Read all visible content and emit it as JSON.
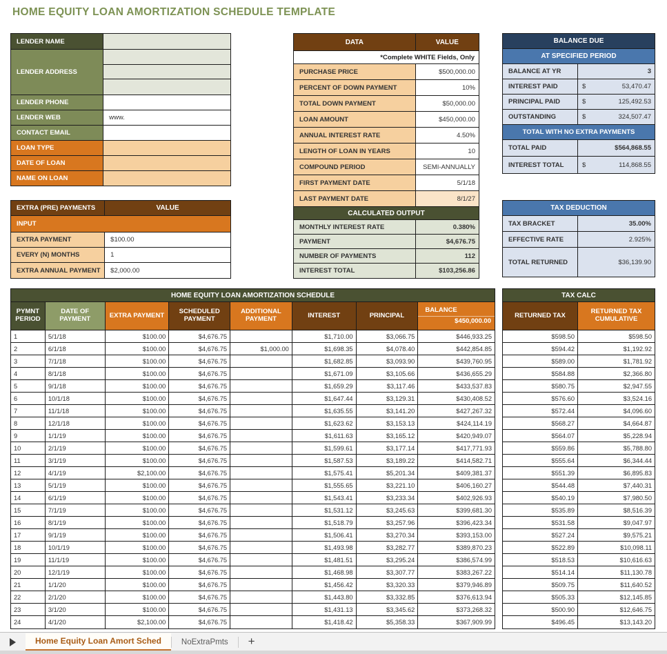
{
  "page_title": "HOME EQUITY LOAN AMORTIZATION SCHEDULE TEMPLATE",
  "colors": {
    "title_green": "#7d9254",
    "dark_olive": "#4a5132",
    "sage": "#7e8b58",
    "orange": "#d8771f",
    "dark_brown": "#714012",
    "peach": "#f6d09f",
    "peach_light": "#fbe4c8",
    "pale_green": "#e3e6da",
    "navy": "#28405e",
    "medium_blue": "#4a77ad",
    "pale_blue": "#dbe2ee",
    "tab_accent": "#c4722e"
  },
  "lender": {
    "name_label": "LENDER NAME",
    "name_value": "",
    "address_label": "LENDER ADDRESS",
    "address_lines": [
      "",
      "",
      ""
    ],
    "phone_label": "LENDER PHONE",
    "phone_value": "",
    "web_label": "LENDER WEB",
    "web_value": "www.",
    "email_label": "CONTACT EMAIL",
    "email_value": "",
    "loan_type_label": "LOAN TYPE",
    "loan_type_value": "",
    "date_of_loan_label": "DATE OF LOAN",
    "date_of_loan_value": "",
    "name_on_loan_label": "NAME ON LOAN",
    "name_on_loan_value": ""
  },
  "extra_payments": {
    "header": "EXTRA (PRE) PAYMENTS",
    "value_header": "VALUE",
    "input_header": "INPUT",
    "rows": [
      {
        "label": "EXTRA PAYMENT",
        "value": "$100.00"
      },
      {
        "label": "EVERY (N) MONTHS",
        "value": "1"
      },
      {
        "label": "EXTRA ANNUAL PAYMENT",
        "value": "$2,000.00"
      }
    ]
  },
  "data_table": {
    "header": "DATA",
    "value_header": "VALUE",
    "note": "*Complete WHITE Fields, Only",
    "rows": [
      {
        "label": "PURCHASE PRICE",
        "value": "$500,000.00",
        "value_bg": "white"
      },
      {
        "label": "PERCENT OF DOWN PAYMENT",
        "value": "10%",
        "value_bg": "white"
      },
      {
        "label": "TOTAL DOWN PAYMENT",
        "value": "$50,000.00",
        "value_bg": "white"
      },
      {
        "label": "LOAN AMOUNT",
        "value": "$450,000.00",
        "value_bg": "white"
      },
      {
        "label": "ANNUAL INTEREST RATE",
        "value": "4.50%",
        "value_bg": "white"
      },
      {
        "label": "LENGTH OF LOAN IN YEARS",
        "value": "10",
        "value_bg": "white"
      },
      {
        "label": "COMPOUND PERIOD",
        "value": "SEMI-ANNUALLY",
        "value_bg": "white"
      },
      {
        "label": "FIRST PAYMENT DATE",
        "value": "5/1/18",
        "value_bg": "white"
      },
      {
        "label": "LAST PAYMENT DATE",
        "value": "8/1/27",
        "value_bg": "peach"
      }
    ],
    "calculated_header": "CALCULATED OUTPUT",
    "calculated_rows": [
      {
        "label": "MONTHLY INTEREST RATE",
        "value": "0.380%"
      },
      {
        "label": "PAYMENT",
        "value": "$4,676.75"
      },
      {
        "label": "NUMBER OF PAYMENTS",
        "value": "112"
      },
      {
        "label": "INTEREST TOTAL",
        "value": "$103,256.86"
      }
    ]
  },
  "balance_due": {
    "header": "BALANCE DUE",
    "sub_header_1": "AT SPECIFIED PERIOD",
    "rows_1": [
      {
        "label": "BALANCE AT YR",
        "currency": "",
        "value": "3"
      },
      {
        "label": "INTEREST PAID",
        "currency": "$",
        "value": "53,470.47"
      },
      {
        "label": "PRINCIPAL PAID",
        "currency": "$",
        "value": "125,492.53"
      },
      {
        "label": "OUTSTANDING",
        "currency": "$",
        "value": "324,507.47"
      }
    ],
    "sub_header_2": "TOTAL WITH NO EXTRA PAYMENTS",
    "rows_2": [
      {
        "label": "TOTAL PAID",
        "currency": "",
        "value": "$564,868.55"
      },
      {
        "label": "INTEREST TOTAL",
        "currency": "$",
        "value": "114,868.55"
      }
    ]
  },
  "tax_deduction": {
    "header": "TAX DEDUCTION",
    "rows": [
      {
        "label": "TAX BRACKET",
        "value": "35.00%"
      },
      {
        "label": "EFFECTIVE RATE",
        "value": "2.925%"
      },
      {
        "label": "TOTAL RETURNED",
        "value": "$36,139.90"
      }
    ]
  },
  "schedule": {
    "title": "HOME EQUITY LOAN AMORTIZATION SCHEDULE",
    "col_pymnt_period": "PYMNT PERIOD",
    "col_date_of_payment": "DATE OF PAYMENT",
    "col_extra_payment": "EXTRA PAYMENT",
    "col_scheduled_payment": "SCHEDULED PAYMENT",
    "col_additional_payment": "ADDITIONAL PAYMENT",
    "col_interest": "INTEREST",
    "col_principal": "PRINCIPAL",
    "col_balance_line1": "BALANCE",
    "col_balance_line2": "$450,000.00",
    "rows": [
      {
        "period": "1",
        "date": "5/1/18",
        "extra": "$100.00",
        "scheduled": "$4,676.75",
        "additional": "",
        "interest": "$1,710.00",
        "principal": "$3,066.75",
        "balance": "$446,933.25",
        "returned_tax": "$598.50",
        "returned_tax_cumulative": "$598.50"
      },
      {
        "period": "2",
        "date": "6/1/18",
        "extra": "$100.00",
        "scheduled": "$4,676.75",
        "additional": "$1,000.00",
        "interest": "$1,698.35",
        "principal": "$4,078.40",
        "balance": "$442,854.85",
        "returned_tax": "$594.42",
        "returned_tax_cumulative": "$1,192.92"
      },
      {
        "period": "3",
        "date": "7/1/18",
        "extra": "$100.00",
        "scheduled": "$4,676.75",
        "additional": "",
        "interest": "$1,682.85",
        "principal": "$3,093.90",
        "balance": "$439,760.95",
        "returned_tax": "$589.00",
        "returned_tax_cumulative": "$1,781.92"
      },
      {
        "period": "4",
        "date": "8/1/18",
        "extra": "$100.00",
        "scheduled": "$4,676.75",
        "additional": "",
        "interest": "$1,671.09",
        "principal": "$3,105.66",
        "balance": "$436,655.29",
        "returned_tax": "$584.88",
        "returned_tax_cumulative": "$2,366.80"
      },
      {
        "period": "5",
        "date": "9/1/18",
        "extra": "$100.00",
        "scheduled": "$4,676.75",
        "additional": "",
        "interest": "$1,659.29",
        "principal": "$3,117.46",
        "balance": "$433,537.83",
        "returned_tax": "$580.75",
        "returned_tax_cumulative": "$2,947.55"
      },
      {
        "period": "6",
        "date": "10/1/18",
        "extra": "$100.00",
        "scheduled": "$4,676.75",
        "additional": "",
        "interest": "$1,647.44",
        "principal": "$3,129.31",
        "balance": "$430,408.52",
        "returned_tax": "$576.60",
        "returned_tax_cumulative": "$3,524.16"
      },
      {
        "period": "7",
        "date": "11/1/18",
        "extra": "$100.00",
        "scheduled": "$4,676.75",
        "additional": "",
        "interest": "$1,635.55",
        "principal": "$3,141.20",
        "balance": "$427,267.32",
        "returned_tax": "$572.44",
        "returned_tax_cumulative": "$4,096.60"
      },
      {
        "period": "8",
        "date": "12/1/18",
        "extra": "$100.00",
        "scheduled": "$4,676.75",
        "additional": "",
        "interest": "$1,623.62",
        "principal": "$3,153.13",
        "balance": "$424,114.19",
        "returned_tax": "$568.27",
        "returned_tax_cumulative": "$4,664.87"
      },
      {
        "period": "9",
        "date": "1/1/19",
        "extra": "$100.00",
        "scheduled": "$4,676.75",
        "additional": "",
        "interest": "$1,611.63",
        "principal": "$3,165.12",
        "balance": "$420,949.07",
        "returned_tax": "$564.07",
        "returned_tax_cumulative": "$5,228.94"
      },
      {
        "period": "10",
        "date": "2/1/19",
        "extra": "$100.00",
        "scheduled": "$4,676.75",
        "additional": "",
        "interest": "$1,599.61",
        "principal": "$3,177.14",
        "balance": "$417,771.93",
        "returned_tax": "$559.86",
        "returned_tax_cumulative": "$5,788.80"
      },
      {
        "period": "11",
        "date": "3/1/19",
        "extra": "$100.00",
        "scheduled": "$4,676.75",
        "additional": "",
        "interest": "$1,587.53",
        "principal": "$3,189.22",
        "balance": "$414,582.71",
        "returned_tax": "$555.64",
        "returned_tax_cumulative": "$6,344.44"
      },
      {
        "period": "12",
        "date": "4/1/19",
        "extra": "$2,100.00",
        "scheduled": "$4,676.75",
        "additional": "",
        "interest": "$1,575.41",
        "principal": "$5,201.34",
        "balance": "$409,381.37",
        "returned_tax": "$551.39",
        "returned_tax_cumulative": "$6,895.83"
      },
      {
        "period": "13",
        "date": "5/1/19",
        "extra": "$100.00",
        "scheduled": "$4,676.75",
        "additional": "",
        "interest": "$1,555.65",
        "principal": "$3,221.10",
        "balance": "$406,160.27",
        "returned_tax": "$544.48",
        "returned_tax_cumulative": "$7,440.31"
      },
      {
        "period": "14",
        "date": "6/1/19",
        "extra": "$100.00",
        "scheduled": "$4,676.75",
        "additional": "",
        "interest": "$1,543.41",
        "principal": "$3,233.34",
        "balance": "$402,926.93",
        "returned_tax": "$540.19",
        "returned_tax_cumulative": "$7,980.50"
      },
      {
        "period": "15",
        "date": "7/1/19",
        "extra": "$100.00",
        "scheduled": "$4,676.75",
        "additional": "",
        "interest": "$1,531.12",
        "principal": "$3,245.63",
        "balance": "$399,681.30",
        "returned_tax": "$535.89",
        "returned_tax_cumulative": "$8,516.39"
      },
      {
        "period": "16",
        "date": "8/1/19",
        "extra": "$100.00",
        "scheduled": "$4,676.75",
        "additional": "",
        "interest": "$1,518.79",
        "principal": "$3,257.96",
        "balance": "$396,423.34",
        "returned_tax": "$531.58",
        "returned_tax_cumulative": "$9,047.97"
      },
      {
        "period": "17",
        "date": "9/1/19",
        "extra": "$100.00",
        "scheduled": "$4,676.75",
        "additional": "",
        "interest": "$1,506.41",
        "principal": "$3,270.34",
        "balance": "$393,153.00",
        "returned_tax": "$527.24",
        "returned_tax_cumulative": "$9,575.21"
      },
      {
        "period": "18",
        "date": "10/1/19",
        "extra": "$100.00",
        "scheduled": "$4,676.75",
        "additional": "",
        "interest": "$1,493.98",
        "principal": "$3,282.77",
        "balance": "$389,870.23",
        "returned_tax": "$522.89",
        "returned_tax_cumulative": "$10,098.11"
      },
      {
        "period": "19",
        "date": "11/1/19",
        "extra": "$100.00",
        "scheduled": "$4,676.75",
        "additional": "",
        "interest": "$1,481.51",
        "principal": "$3,295.24",
        "balance": "$386,574.99",
        "returned_tax": "$518.53",
        "returned_tax_cumulative": "$10,616.63"
      },
      {
        "period": "20",
        "date": "12/1/19",
        "extra": "$100.00",
        "scheduled": "$4,676.75",
        "additional": "",
        "interest": "$1,468.98",
        "principal": "$3,307.77",
        "balance": "$383,267.22",
        "returned_tax": "$514.14",
        "returned_tax_cumulative": "$11,130.78"
      },
      {
        "period": "21",
        "date": "1/1/20",
        "extra": "$100.00",
        "scheduled": "$4,676.75",
        "additional": "",
        "interest": "$1,456.42",
        "principal": "$3,320.33",
        "balance": "$379,946.89",
        "returned_tax": "$509.75",
        "returned_tax_cumulative": "$11,640.52"
      },
      {
        "period": "22",
        "date": "2/1/20",
        "extra": "$100.00",
        "scheduled": "$4,676.75",
        "additional": "",
        "interest": "$1,443.80",
        "principal": "$3,332.85",
        "balance": "$376,613.94",
        "returned_tax": "$505.33",
        "returned_tax_cumulative": "$12,145.85"
      },
      {
        "period": "23",
        "date": "3/1/20",
        "extra": "$100.00",
        "scheduled": "$4,676.75",
        "additional": "",
        "interest": "$1,431.13",
        "principal": "$3,345.62",
        "balance": "$373,268.32",
        "returned_tax": "$500.90",
        "returned_tax_cumulative": "$12,646.75"
      },
      {
        "period": "24",
        "date": "4/1/20",
        "extra": "$2,100.00",
        "scheduled": "$4,676.75",
        "additional": "",
        "interest": "$1,418.42",
        "principal": "$5,358.33",
        "balance": "$367,909.99",
        "returned_tax": "$496.45",
        "returned_tax_cumulative": "$13,143.20"
      }
    ]
  },
  "tax_calc": {
    "title": "TAX CALC",
    "col_returned_tax": "RETURNED TAX",
    "col_returned_tax_cumulative": "RETURNED TAX CUMULATIVE"
  },
  "sheet_tabs": {
    "active": "Home Equity Loan Amort Sched",
    "inactive": "NoExtraPmts",
    "add": "+"
  }
}
